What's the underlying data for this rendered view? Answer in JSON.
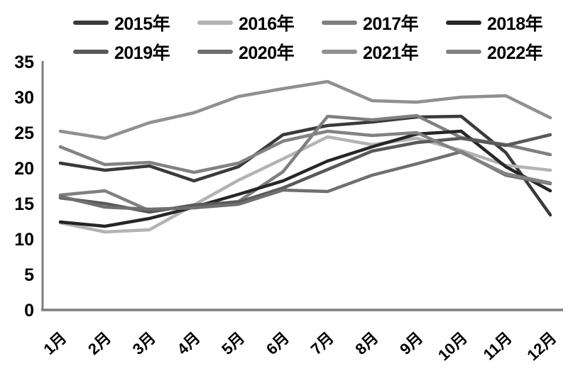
{
  "chart_data": {
    "type": "line",
    "title": "",
    "xlabel": "",
    "ylabel": "",
    "categories": [
      "1月",
      "2月",
      "3月",
      "4月",
      "5月",
      "6月",
      "7月",
      "8月",
      "9月",
      "10月",
      "11月",
      "12月"
    ],
    "series": [
      {
        "name": "2015年",
        "color": "#3a3a3a",
        "values": [
          20.7,
          19.7,
          20.3,
          18.2,
          20.2,
          24.7,
          26.0,
          26.5,
          27.2,
          27.3,
          22.2,
          13.4
        ]
      },
      {
        "name": "2016年",
        "color": "#b3b3b3",
        "values": [
          12.3,
          11.0,
          11.3,
          14.8,
          18.3,
          21.3,
          24.4,
          23.3,
          24.2,
          22.5,
          20.4,
          19.7
        ]
      },
      {
        "name": "2017年",
        "color": "#7f7f7f",
        "values": [
          16.2,
          16.8,
          14.0,
          14.6,
          15.3,
          19.5,
          27.3,
          26.8,
          27.4,
          24.3,
          23.3,
          21.9
        ]
      },
      {
        "name": "2018年",
        "color": "#262626",
        "values": [
          12.4,
          11.8,
          12.9,
          14.5,
          16.3,
          18.2,
          21.0,
          23.0,
          24.8,
          25.2,
          20.2,
          16.8
        ]
      },
      {
        "name": "2019年",
        "color": "#595959",
        "values": [
          15.8,
          15.0,
          13.8,
          14.8,
          15.2,
          17.2,
          19.8,
          22.4,
          23.6,
          24.2,
          23.2,
          24.7
        ]
      },
      {
        "name": "2020年",
        "color": "#6f6f6f",
        "values": [
          16.0,
          14.5,
          14.2,
          14.4,
          14.9,
          16.9,
          16.7,
          19.0,
          20.6,
          22.3,
          19.0,
          17.8
        ]
      },
      {
        "name": "2021年",
        "color": "#909090",
        "values": [
          25.2,
          24.2,
          26.4,
          27.8,
          30.1,
          31.2,
          32.2,
          29.5,
          29.3,
          30.0,
          30.2,
          27.1
        ]
      },
      {
        "name": "2022年",
        "color": "#828282",
        "values": [
          23.0,
          20.5,
          20.8,
          19.4,
          20.7,
          23.8,
          25.2,
          24.6,
          25.0,
          22.2,
          19.2,
          17.9
        ]
      }
    ],
    "ylim": [
      0,
      35
    ],
    "yticks": [
      0,
      5,
      10,
      15,
      20,
      25,
      30,
      35
    ],
    "grid": false,
    "legend_position": "top",
    "axis_color": "#7f7f7f",
    "text_color": "#000000",
    "background_color": "#ffffff"
  }
}
